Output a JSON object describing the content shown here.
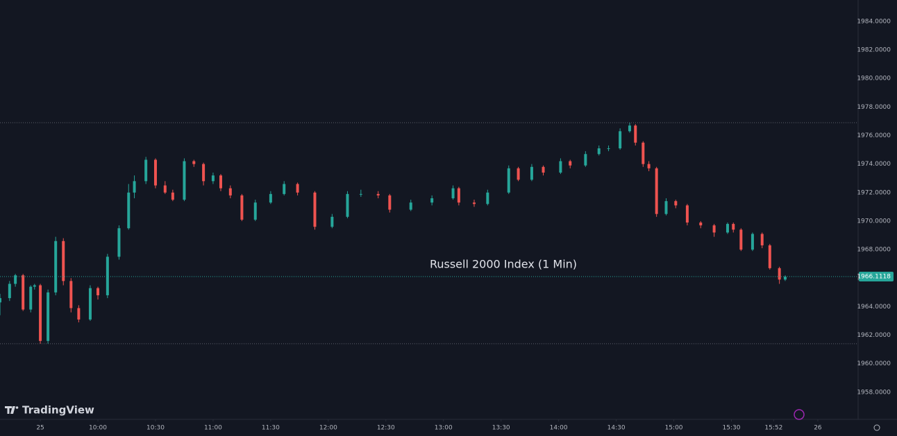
{
  "chart_data": {
    "type": "candlestick",
    "title": "Russell 2000 Index (1 Min)",
    "watermark": "TradingView",
    "up_color": "#26a69a",
    "down_color": "#ef5350",
    "x": [
      "09:09",
      "09:14",
      "09:17",
      "09:21",
      "09:25",
      "09:27",
      "09:30",
      "09:34",
      "09:38",
      "09:42",
      "09:46",
      "09:50",
      "09:56",
      "10:00",
      "10:05",
      "10:11",
      "10:16",
      "10:19",
      "10:25",
      "10:30",
      "10:35",
      "10:39",
      "10:45",
      "10:50",
      "10:55",
      "11:00",
      "11:04",
      "11:09",
      "11:15",
      "11:22",
      "11:30",
      "11:37",
      "11:44",
      "11:53",
      "12:02",
      "12:10",
      "12:17",
      "12:26",
      "12:32",
      "12:43",
      "12:54",
      "13:05",
      "13:08",
      "13:16",
      "13:23",
      "13:34",
      "13:39",
      "13:46",
      "13:52",
      "14:01",
      "14:06",
      "14:14",
      "14:21",
      "14:26",
      "14:32",
      "14:37",
      "14:40",
      "14:44",
      "14:47",
      "14:51",
      "14:56",
      "15:01",
      "15:07",
      "15:14",
      "15:21",
      "15:28",
      "15:31",
      "15:35",
      "15:41",
      "15:46",
      "15:50",
      "15:55",
      "15:58"
    ],
    "open": [
      1964.3,
      1964.6,
      1965.6,
      1966.2,
      1963.8,
      1965.4,
      1965.5,
      1961.6,
      1965.0,
      1968.6,
      1965.8,
      1963.9,
      1963.1,
      1965.3,
      1964.8,
      1967.5,
      1969.5,
      1972.0,
      1972.8,
      1974.3,
      1972.5,
      1972.0,
      1971.5,
      1974.2,
      1974.0,
      1972.8,
      1973.2,
      1972.3,
      1971.8,
      1970.1,
      1971.3,
      1971.9,
      1972.6,
      1972.0,
      1969.6,
      1970.3,
      1971.9,
      1971.9,
      1971.8,
      1970.8,
      1971.3,
      1971.6,
      1972.3,
      1971.3,
      1971.2,
      1972.0,
      1973.7,
      1972.9,
      1973.8,
      1973.4,
      1974.2,
      1973.9,
      1974.7,
      1975.1,
      1975.1,
      1976.3,
      1976.7,
      1975.5,
      1974.0,
      1973.7,
      1970.5,
      1971.4,
      1971.1,
      1969.9,
      1969.7,
      1969.2,
      1969.8,
      1969.4,
      1968.0,
      1969.1,
      1968.3,
      1966.7,
      1965.9
    ],
    "high": [
      1964.9,
      1965.8,
      1966.3,
      1966.3,
      1965.5,
      1965.6,
      1965.6,
      1965.2,
      1968.9,
      1968.8,
      1966.0,
      1964.1,
      1965.5,
      1965.4,
      1967.7,
      1969.7,
      1972.6,
      1973.2,
      1974.5,
      1974.4,
      1972.8,
      1972.2,
      1974.4,
      1974.3,
      1974.1,
      1973.4,
      1973.3,
      1972.5,
      1971.9,
      1971.5,
      1972.1,
      1972.8,
      1972.7,
      1972.1,
      1970.5,
      1972.1,
      1972.2,
      1972.1,
      1971.9,
      1971.5,
      1971.8,
      1972.5,
      1972.4,
      1971.5,
      1972.2,
      1973.9,
      1973.8,
      1974.0,
      1973.9,
      1974.4,
      1974.3,
      1974.9,
      1975.3,
      1975.3,
      1976.5,
      1976.9,
      1976.8,
      1975.6,
      1974.2,
      1973.8,
      1971.6,
      1971.5,
      1971.2,
      1970.0,
      1969.8,
      1969.9,
      1969.9,
      1969.5,
      1969.2,
      1969.2,
      1968.4,
      1966.8,
      1966.2
    ],
    "low": [
      1963.4,
      1964.4,
      1965.4,
      1963.7,
      1963.6,
      1965.2,
      1961.4,
      1961.4,
      1964.8,
      1965.5,
      1963.6,
      1962.9,
      1963.0,
      1964.5,
      1964.6,
      1967.3,
      1969.4,
      1971.6,
      1972.6,
      1972.3,
      1971.9,
      1971.4,
      1971.4,
      1973.8,
      1972.5,
      1972.6,
      1972.1,
      1971.6,
      1970.0,
      1970.0,
      1971.2,
      1971.8,
      1971.8,
      1969.4,
      1969.5,
      1970.2,
      1971.7,
      1971.6,
      1970.6,
      1970.7,
      1971.1,
      1971.5,
      1971.1,
      1971.0,
      1971.1,
      1971.9,
      1972.8,
      1972.8,
      1973.2,
      1973.3,
      1973.7,
      1973.8,
      1974.6,
      1974.9,
      1975.0,
      1976.2,
      1975.3,
      1973.8,
      1973.5,
      1970.3,
      1970.4,
      1970.9,
      1969.7,
      1969.5,
      1968.9,
      1969.1,
      1969.2,
      1967.9,
      1967.9,
      1968.1,
      1966.6,
      1965.6,
      1965.8
    ],
    "close": [
      1964.6,
      1965.6,
      1966.2,
      1963.8,
      1965.4,
      1965.5,
      1961.6,
      1965.0,
      1968.6,
      1965.8,
      1963.9,
      1963.1,
      1965.3,
      1964.8,
      1967.5,
      1969.5,
      1972.0,
      1972.8,
      1974.3,
      1972.5,
      1972.0,
      1971.5,
      1974.2,
      1974.0,
      1972.8,
      1973.2,
      1972.3,
      1971.8,
      1970.1,
      1971.3,
      1971.9,
      1972.6,
      1972.0,
      1969.6,
      1970.3,
      1971.9,
      1971.9,
      1971.8,
      1970.8,
      1971.3,
      1971.6,
      1972.3,
      1971.3,
      1971.2,
      1972.0,
      1973.7,
      1972.9,
      1973.8,
      1973.4,
      1974.2,
      1973.9,
      1974.7,
      1975.1,
      1975.1,
      1976.3,
      1976.7,
      1975.5,
      1974.0,
      1973.7,
      1970.5,
      1971.4,
      1971.1,
      1969.9,
      1969.7,
      1969.2,
      1969.8,
      1969.4,
      1968.0,
      1969.1,
      1968.3,
      1966.7,
      1965.9,
      1966.1
    ],
    "last_price": {
      "value": 1966.1118,
      "label": "1966.1118"
    },
    "xlim": [
      "09:09",
      "16:36"
    ],
    "xticks": [
      {
        "value": "09:30",
        "label": "25"
      },
      "10:00",
      "10:30",
      "11:00",
      "11:30",
      "12:00",
      "12:30",
      "13:00",
      "13:30",
      "14:00",
      "14:30",
      "15:00",
      "15:30",
      "15:52",
      {
        "value": "16:15",
        "label": "26"
      }
    ],
    "ylim": [
      1956.1,
      1985.5
    ],
    "yticks": [
      {
        "value": 1958,
        "label": "1958.0000"
      },
      {
        "value": 1960,
        "label": "1960.0000"
      },
      {
        "value": 1962,
        "label": "1962.0000"
      },
      {
        "value": 1964,
        "label": "1964.0000"
      },
      {
        "value": 1966,
        "label": "1966.0000"
      },
      {
        "value": 1968,
        "label": "1968.0000"
      },
      {
        "value": 1970,
        "label": "1970.0000"
      },
      {
        "value": 1972,
        "label": "1972.0000"
      },
      {
        "value": 1974,
        "label": "1974.0000"
      },
      {
        "value": 1976,
        "label": "1976.0000"
      },
      {
        "value": 1978,
        "label": "1978.0000"
      },
      {
        "value": 1980,
        "label": "1980.0000"
      },
      {
        "value": 1982,
        "label": "1982.0000"
      },
      {
        "value": 1984,
        "label": "1984.0000"
      }
    ],
    "grid": false
  }
}
